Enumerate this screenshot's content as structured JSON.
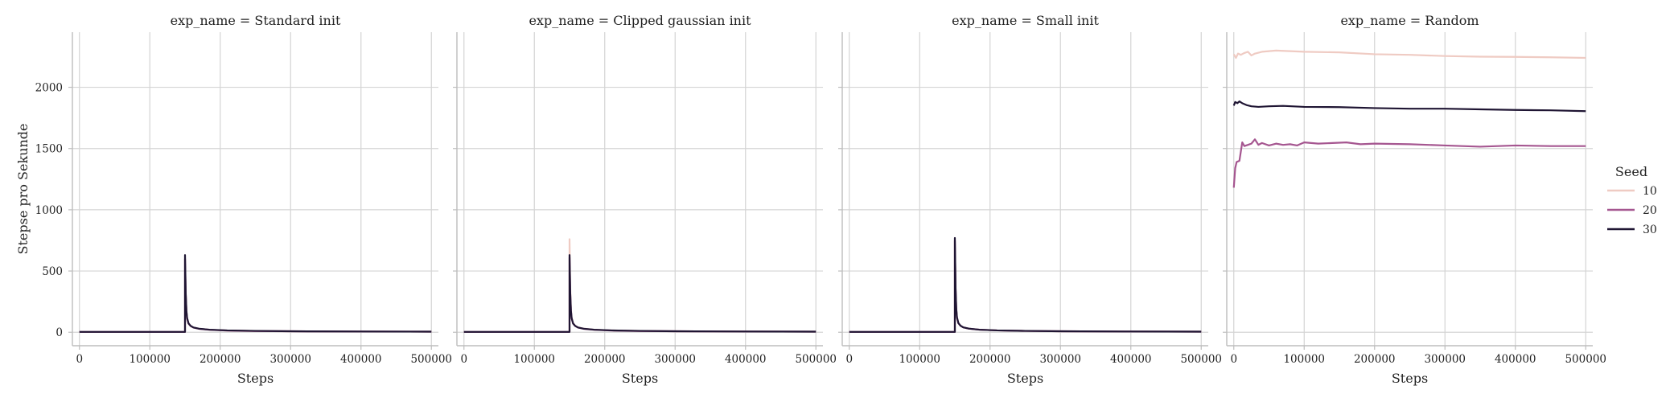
{
  "chart_data": {
    "type": "line",
    "ylabel": "Stepse pro Sekunde",
    "xlabel": "Steps",
    "x_ticks": [
      0,
      100000,
      200000,
      300000,
      400000,
      500000
    ],
    "y_ticks": [
      0,
      500,
      1000,
      1500,
      2000
    ],
    "xlim": [
      -10000,
      510000
    ],
    "ylim": [
      -110,
      2450
    ],
    "grid": true,
    "legend": {
      "title": "Seed",
      "position": "right",
      "entries": [
        {
          "label": "10",
          "color": "#efcbc3"
        },
        {
          "label": "20",
          "color": "#a55690"
        },
        {
          "label": "30",
          "color": "#1f1533"
        }
      ]
    },
    "panels": [
      {
        "title": "exp_name = Standard init",
        "series": [
          {
            "name": "10",
            "color": "#efcbc3",
            "x": [
              0,
              150000,
              150000,
              151000,
              152000,
              153000,
              155000,
              158000,
              162000,
              170000,
              185000,
              210000,
              250000,
              300000,
              400000,
              500000
            ],
            "y": [
              3,
              3,
              590,
              310,
              170,
              110,
              70,
              50,
              38,
              28,
              20,
              14,
              10,
              8,
              6,
              5
            ]
          },
          {
            "name": "20",
            "color": "#a55690",
            "x": [
              0,
              150000,
              150000,
              151000,
              152000,
              153000,
              155000,
              158000,
              162000,
              170000,
              185000,
              210000,
              250000,
              300000,
              400000,
              500000
            ],
            "y": [
              3,
              3,
              600,
              315,
              172,
              112,
              71,
              51,
              38,
              28,
              20,
              14,
              10,
              8,
              6,
              5
            ]
          },
          {
            "name": "30",
            "color": "#1f1533",
            "x": [
              0,
              150000,
              150000,
              151000,
              152000,
              153000,
              155000,
              158000,
              162000,
              170000,
              185000,
              210000,
              250000,
              300000,
              400000,
              500000
            ],
            "y": [
              3,
              3,
              630,
              320,
              175,
              115,
              72,
              52,
              39,
              29,
              21,
              15,
              11,
              8,
              6,
              5
            ]
          }
        ]
      },
      {
        "title": "exp_name = Clipped gaussian init",
        "series": [
          {
            "name": "10",
            "color": "#efcbc3",
            "x": [
              0,
              150000,
              150000,
              151000,
              152000,
              153000,
              155000,
              158000,
              162000,
              170000,
              185000,
              210000,
              250000,
              300000,
              400000,
              500000
            ],
            "y": [
              3,
              3,
              760,
              360,
              190,
              120,
              75,
              54,
              40,
              30,
              21,
              15,
              11,
              8,
              6,
              5
            ]
          },
          {
            "name": "20",
            "color": "#a55690",
            "x": [
              0,
              150000,
              150000,
              151000,
              152000,
              153000,
              155000,
              158000,
              162000,
              170000,
              185000,
              210000,
              250000,
              300000,
              400000,
              500000
            ],
            "y": [
              3,
              3,
              610,
              318,
              173,
              113,
              71,
              51,
              38,
              28,
              20,
              14,
              10,
              8,
              6,
              5
            ]
          },
          {
            "name": "30",
            "color": "#1f1533",
            "x": [
              0,
              150000,
              150000,
              151000,
              152000,
              153000,
              155000,
              158000,
              162000,
              170000,
              185000,
              210000,
              250000,
              300000,
              400000,
              500000
            ],
            "y": [
              3,
              3,
              630,
              320,
              175,
              115,
              72,
              52,
              39,
              29,
              21,
              15,
              11,
              8,
              6,
              5
            ]
          }
        ]
      },
      {
        "title": "exp_name = Small init",
        "series": [
          {
            "name": "10",
            "color": "#efcbc3",
            "x": [
              0,
              150000,
              150000,
              151000,
              152000,
              153000,
              155000,
              158000,
              162000,
              170000,
              185000,
              210000,
              250000,
              300000,
              400000,
              500000
            ],
            "y": [
              3,
              3,
              740,
              355,
              188,
              118,
              74,
              53,
              40,
              29,
              21,
              15,
              11,
              8,
              6,
              5
            ]
          },
          {
            "name": "20",
            "color": "#a55690",
            "x": [
              0,
              150000,
              150000,
              151000,
              152000,
              153000,
              155000,
              158000,
              162000,
              170000,
              185000,
              210000,
              250000,
              300000,
              400000,
              500000
            ],
            "y": [
              3,
              3,
              750,
              358,
              189,
              119,
              74,
              53,
              40,
              29,
              21,
              15,
              11,
              8,
              6,
              5
            ]
          },
          {
            "name": "30",
            "color": "#1f1533",
            "x": [
              0,
              150000,
              150000,
              151000,
              152000,
              153000,
              155000,
              158000,
              162000,
              170000,
              185000,
              210000,
              250000,
              300000,
              400000,
              500000
            ],
            "y": [
              3,
              3,
              770,
              365,
              192,
              121,
              75,
              54,
              40,
              30,
              21,
              15,
              11,
              8,
              6,
              5
            ]
          }
        ]
      },
      {
        "title": "exp_name = Random",
        "series": [
          {
            "name": "10",
            "color": "#efcbc3",
            "x": [
              0,
              3000,
              6000,
              10000,
              15000,
              20000,
              25000,
              30000,
              40000,
              60000,
              80000,
              100000,
              150000,
              200000,
              250000,
              300000,
              350000,
              400000,
              450000,
              500000
            ],
            "y": [
              2270,
              2240,
              2275,
              2265,
              2280,
              2290,
              2260,
              2275,
              2290,
              2300,
              2295,
              2290,
              2285,
              2270,
              2265,
              2255,
              2250,
              2248,
              2245,
              2240
            ]
          },
          {
            "name": "20",
            "color": "#a55690",
            "x": [
              0,
              2000,
              4000,
              8000,
              12000,
              15000,
              20000,
              25000,
              30000,
              35000,
              40000,
              50000,
              60000,
              70000,
              80000,
              90000,
              100000,
              120000,
              140000,
              160000,
              180000,
              200000,
              250000,
              300000,
              350000,
              400000,
              450000,
              500000
            ],
            "y": [
              1180,
              1340,
              1390,
              1400,
              1550,
              1520,
              1530,
              1540,
              1575,
              1530,
              1545,
              1525,
              1540,
              1530,
              1535,
              1525,
              1550,
              1540,
              1545,
              1550,
              1535,
              1540,
              1535,
              1525,
              1515,
              1525,
              1520,
              1520
            ]
          },
          {
            "name": "30",
            "color": "#1f1533",
            "x": [
              0,
              2000,
              5000,
              8000,
              12000,
              18000,
              25000,
              35000,
              50000,
              70000,
              100000,
              150000,
              200000,
              250000,
              300000,
              350000,
              400000,
              450000,
              500000
            ],
            "y": [
              1850,
              1880,
              1870,
              1885,
              1870,
              1855,
              1845,
              1840,
              1845,
              1848,
              1840,
              1838,
              1830,
              1825,
              1825,
              1820,
              1815,
              1812,
              1805
            ]
          }
        ]
      }
    ]
  }
}
